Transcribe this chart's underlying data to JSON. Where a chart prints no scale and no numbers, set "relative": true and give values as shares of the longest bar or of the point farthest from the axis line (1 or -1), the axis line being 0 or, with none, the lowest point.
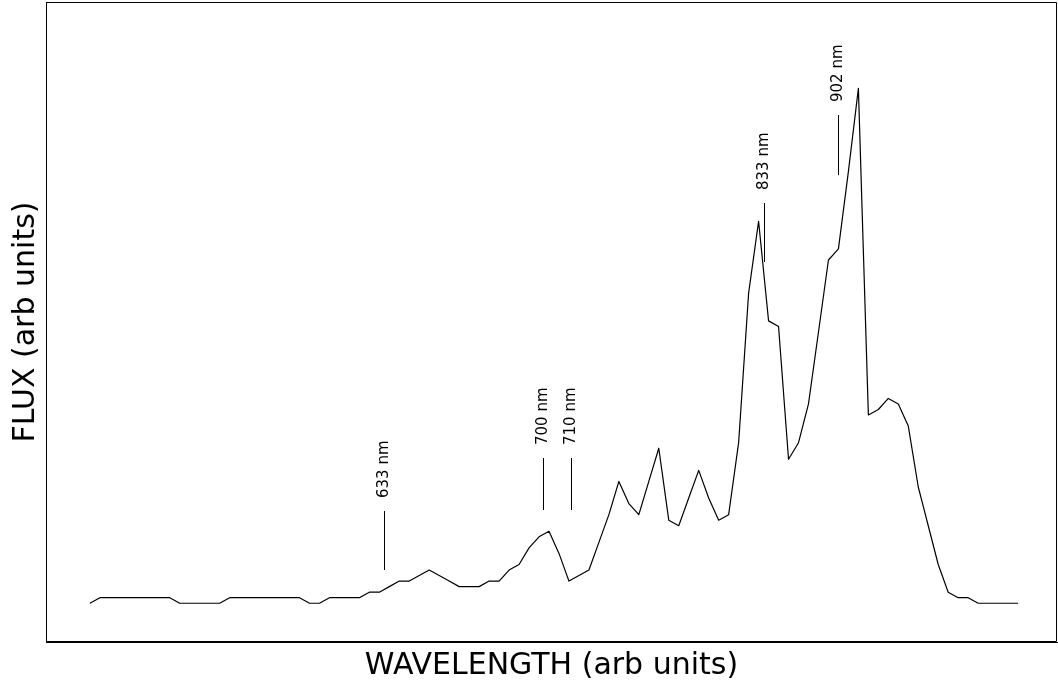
{
  "chart_data": {
    "type": "line",
    "relative": true,
    "xlabel": "WAVELENGTH (arb units)",
    "ylabel": "FLUX (arb units)",
    "categories": [
      null,
      null,
      null,
      null,
      null,
      null,
      null,
      null,
      null,
      null,
      null,
      null,
      null,
      null,
      null,
      null,
      null,
      null,
      null,
      null,
      null,
      null,
      null,
      null,
      null,
      null,
      null,
      null,
      null,
      null,
      null,
      null,
      null,
      null,
      null,
      null,
      null,
      null,
      null,
      null,
      null,
      null,
      null,
      null,
      null,
      null,
      null,
      null,
      null,
      null,
      null,
      null,
      null,
      null,
      null,
      null,
      null,
      null,
      null,
      null,
      null,
      null,
      null,
      null,
      null,
      null,
      null,
      null,
      null,
      null,
      null,
      null,
      null,
      null,
      null,
      null,
      null,
      null,
      null,
      null,
      null,
      null,
      null,
      null,
      null,
      null,
      null,
      null,
      null,
      null,
      null,
      null,
      null,
      null
    ],
    "series": [
      {
        "color": "#000000",
        "values": [
          0.07,
          0.08,
          0.08,
          0.08,
          0.08,
          0.08,
          0.08,
          0.08,
          0.08,
          0.07,
          0.07,
          0.07,
          0.07,
          0.07,
          0.08,
          0.08,
          0.08,
          0.08,
          0.08,
          0.08,
          0.08,
          0.08,
          0.07,
          0.07,
          0.08,
          0.08,
          0.08,
          0.08,
          0.09,
          0.09,
          0.1,
          0.11,
          0.11,
          0.12,
          0.13,
          0.12,
          0.11,
          0.1,
          0.1,
          0.1,
          0.11,
          0.11,
          0.13,
          0.14,
          0.17,
          0.19,
          0.2,
          0.16,
          0.11,
          0.12,
          0.13,
          0.18,
          0.23,
          0.29,
          0.25,
          0.23,
          0.29,
          0.35,
          0.22,
          0.21,
          0.26,
          0.31,
          0.26,
          0.22,
          0.23,
          0.36,
          0.63,
          0.76,
          0.58,
          0.57,
          0.33,
          0.36,
          0.43,
          0.56,
          0.69,
          0.71,
          0.85,
          1,
          0.41,
          0.42,
          0.44,
          0.43,
          0.39,
          0.28,
          0.21,
          0.14,
          0.09,
          0.08,
          0.08,
          0.07,
          0.07,
          0.07,
          0.07,
          0.07
        ]
      }
    ],
    "annotations": [
      "633 nm",
      "700 nm",
      "710 nm",
      "833 nm",
      "902 nm"
    ],
    "legend": false,
    "marker": "none",
    "line_style": "solid"
  }
}
